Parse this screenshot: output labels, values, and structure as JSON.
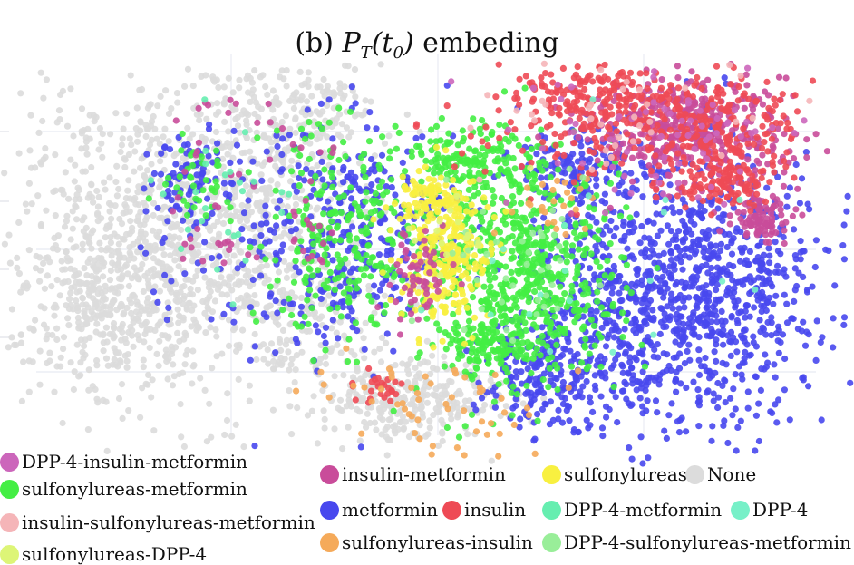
{
  "title": {
    "prefix": "(b) ",
    "math": "P_T(t_0)",
    "suffix": " embeding"
  },
  "chart_data": {
    "type": "scatter",
    "title": "(b) P_T(t_0) embeding",
    "xlabel": "",
    "ylabel": "",
    "grid": true,
    "legend_placement": "bottom",
    "series": [
      {
        "name": "DPP-4-insulin-metformin",
        "color": "#cc66bb"
      },
      {
        "name": "sulfonylureas-metformin",
        "color": "#44ee44"
      },
      {
        "name": "insulin-sulfonylureas-metformin",
        "color": "#f5b5b8"
      },
      {
        "name": "sulfonylureas-DPP-4",
        "color": "#ddf577"
      },
      {
        "name": "insulin-metformin",
        "color": "#c94c9a"
      },
      {
        "name": "metformin",
        "color": "#4848ee"
      },
      {
        "name": "insulin",
        "color": "#ee4a55"
      },
      {
        "name": "sulfonylureas-insulin",
        "color": "#f5aa5a"
      },
      {
        "name": "sulfonylureas",
        "color": "#f8f040"
      },
      {
        "name": "DPP-4-metformin",
        "color": "#66eeb0"
      },
      {
        "name": "None",
        "color": "#dcdcdc"
      },
      {
        "name": "DPP-4",
        "color": "#77f0c8"
      },
      {
        "name": "DPP-4-sulfonylureas-metformin",
        "color": "#99ee99"
      }
    ]
  }
}
